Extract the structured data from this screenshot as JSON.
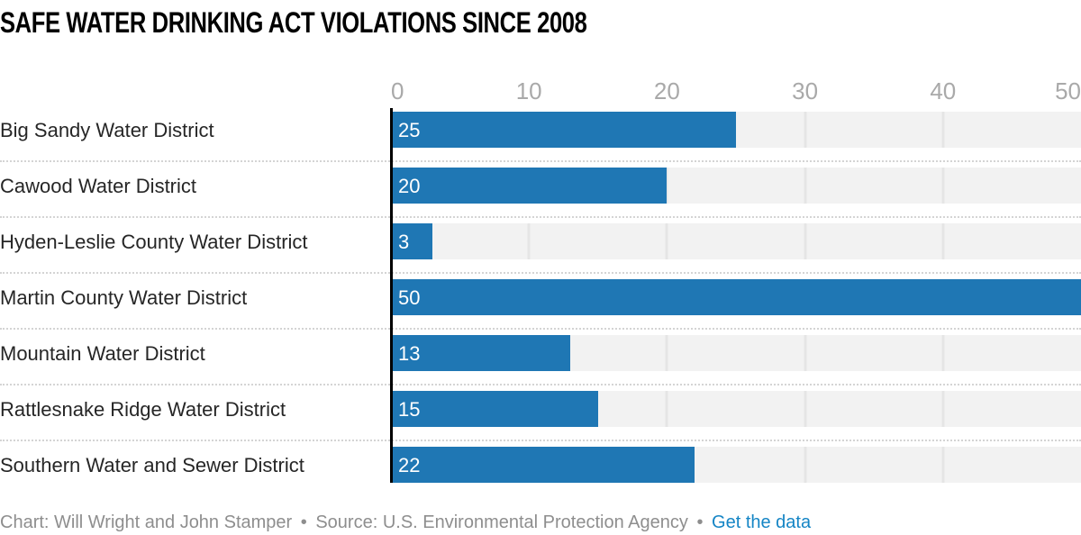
{
  "chart": {
    "title": "SAFE WATER DRINKING ACT VIOLATIONS SINCE 2008"
  },
  "chart_data": {
    "type": "bar",
    "orientation": "horizontal",
    "title": "SAFE WATER DRINKING ACT VIOLATIONS SINCE 2008",
    "categories": [
      "Big Sandy Water District",
      "Cawood Water District",
      "Hyden-Leslie County Water District",
      "Martin County Water District",
      "Mountain Water District",
      "Rattlesnake Ridge Water District",
      "Southern Water and Sewer District"
    ],
    "values": [
      25,
      20,
      3,
      50,
      13,
      15,
      22
    ],
    "xlabel": "",
    "ylabel": "",
    "xlim": [
      0,
      50
    ],
    "xticks": [
      0,
      10,
      20,
      30,
      40,
      50
    ],
    "grid": true,
    "legend": "none",
    "bar_color": "#1f77b4",
    "track_color": "#f2f2f2",
    "gridline_color": "#e5e5e5",
    "tick_label_color": "#a9a9a9",
    "value_label_color": "#ffffff"
  },
  "footer": {
    "credit": "Chart: Will Wright and John Stamper",
    "separator": "•",
    "source": "Source: U.S. Environmental Protection Agency",
    "link_label": "Get the data",
    "link_color": "#1585c5"
  }
}
